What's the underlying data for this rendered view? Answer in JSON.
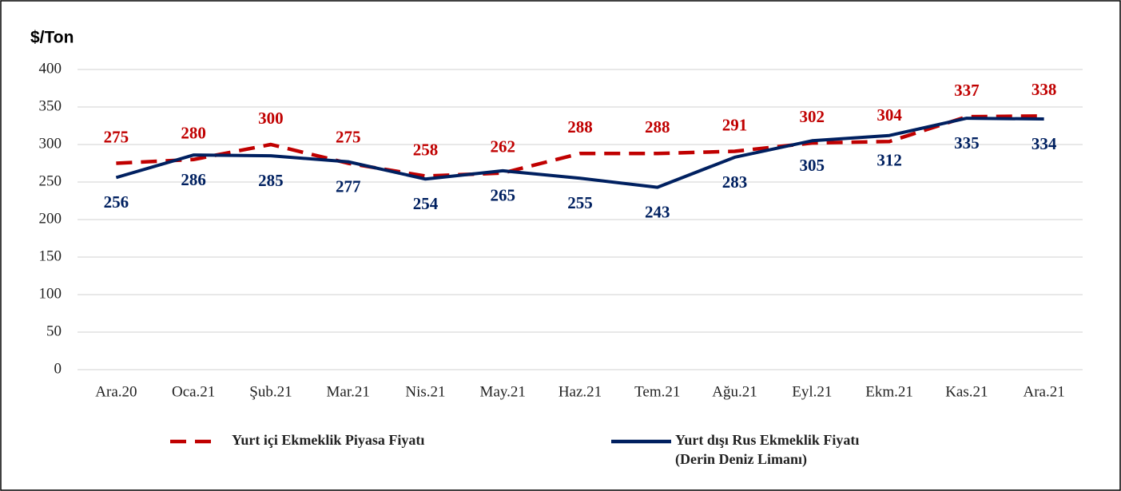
{
  "chart_data": {
    "type": "line",
    "y_axis_label": "$/Ton",
    "categories": [
      "Ara.20",
      "Oca.21",
      "Şub.21",
      "Mar.21",
      "Nis.21",
      "May.21",
      "Haz.21",
      "Tem.21",
      "Ağu.21",
      "Eyl.21",
      "Ekm.21",
      "Kas.21",
      "Ara.21"
    ],
    "series": [
      {
        "name": "Yurt içi Ekmeklik Piyasa Fiyatı",
        "color": "#c00000",
        "dashed": true,
        "values": [
          275,
          280,
          300,
          275,
          258,
          262,
          288,
          288,
          291,
          302,
          304,
          337,
          338
        ]
      },
      {
        "name": "Yurt dışı Rus Ekmeklik Fiyatı\n(Derin Deniz Limanı)",
        "color": "#002060",
        "dashed": false,
        "values": [
          256,
          286,
          285,
          277,
          254,
          265,
          255,
          243,
          283,
          305,
          312,
          335,
          334
        ]
      }
    ],
    "ylim": [
      0,
      400
    ],
    "yticks": [
      0,
      50,
      100,
      150,
      200,
      250,
      300,
      350,
      400
    ],
    "grid": true,
    "legend": "bottom"
  }
}
